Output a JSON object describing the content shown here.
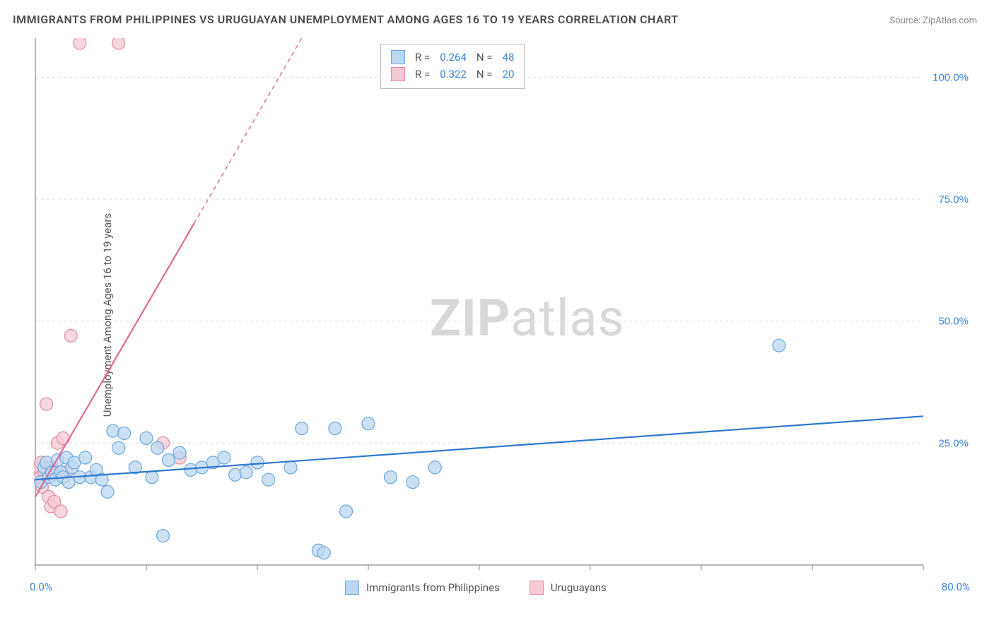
{
  "title": "IMMIGRANTS FROM PHILIPPINES VS URUGUAYAN UNEMPLOYMENT AMONG AGES 16 TO 19 YEARS CORRELATION CHART",
  "source": "Source: ZipAtlas.com",
  "ylabel": "Unemployment Among Ages 16 to 19 years",
  "watermark_bold": "ZIP",
  "watermark_light": "atlas",
  "chart": {
    "type": "scatter",
    "background": "#ffffff",
    "grid_color": "#dcdcdc",
    "grid_dash": "4,4",
    "axis_color": "#888888",
    "x_range": [
      0,
      80
    ],
    "y_range": [
      0,
      108
    ],
    "x_ticks": [
      0,
      10,
      20,
      30,
      40,
      50,
      60,
      70,
      80
    ],
    "x_label_0": "0.0%",
    "x_label_max": "80.0%",
    "y_ticks": [
      25,
      50,
      75,
      100
    ],
    "y_tick_labels": [
      "25.0%",
      "50.0%",
      "75.0%",
      "100.0%"
    ],
    "marker_radius": 9,
    "marker_stroke_width": 1.2,
    "line_width": 2.2,
    "series": [
      {
        "name": "Immigrants from Philippines",
        "fill": "#bcd7f2",
        "stroke": "#6aa7de",
        "line_color": "#2f79cf",
        "line_dash": null,
        "trend": {
          "x1": 0,
          "y1": 17.5,
          "x2": 80,
          "y2": 30.5
        },
        "R_label": "R =",
        "R": "0.264",
        "N_label": "N =",
        "N": "48",
        "points": [
          [
            0.5,
            17
          ],
          [
            0.8,
            20
          ],
          [
            1.0,
            21
          ],
          [
            1.2,
            18
          ],
          [
            1.5,
            19
          ],
          [
            1.8,
            17.5
          ],
          [
            2.0,
            21.5
          ],
          [
            2.3,
            19
          ],
          [
            2.5,
            18
          ],
          [
            2.8,
            22
          ],
          [
            3.0,
            17
          ],
          [
            3.3,
            20
          ],
          [
            3.5,
            21
          ],
          [
            4.0,
            18
          ],
          [
            4.5,
            22
          ],
          [
            5.0,
            18
          ],
          [
            5.5,
            19.5
          ],
          [
            6.0,
            17.5
          ],
          [
            6.5,
            15
          ],
          [
            7.0,
            27.5
          ],
          [
            7.5,
            24
          ],
          [
            8.0,
            27
          ],
          [
            9.0,
            20
          ],
          [
            10.0,
            26
          ],
          [
            10.5,
            18
          ],
          [
            11.0,
            24
          ],
          [
            11.5,
            6
          ],
          [
            12.0,
            21.5
          ],
          [
            13.0,
            23
          ],
          [
            14.0,
            19.5
          ],
          [
            15.0,
            20
          ],
          [
            16.0,
            21
          ],
          [
            17.0,
            22
          ],
          [
            18.0,
            18.5
          ],
          [
            19.0,
            19
          ],
          [
            20.0,
            21
          ],
          [
            21.0,
            17.5
          ],
          [
            23.0,
            20
          ],
          [
            24.0,
            28
          ],
          [
            25.5,
            3
          ],
          [
            26.0,
            2.5
          ],
          [
            27.0,
            28
          ],
          [
            28.0,
            11
          ],
          [
            30.0,
            29
          ],
          [
            32.0,
            18
          ],
          [
            34.0,
            17
          ],
          [
            36.0,
            20
          ],
          [
            67.0,
            45
          ]
        ]
      },
      {
        "name": "Uruguayans",
        "fill": "#f6c9d4",
        "stroke": "#e48aa4",
        "line_color": "#e06a8e",
        "line_dash": "6,5",
        "trend": {
          "x1": 0,
          "y1": 14,
          "x2": 24,
          "y2": 108
        },
        "R_label": "R =",
        "R": "0.322",
        "N_label": "N =",
        "N": "20",
        "points": [
          [
            0.3,
            20
          ],
          [
            0.4,
            18
          ],
          [
            0.5,
            21
          ],
          [
            0.6,
            16
          ],
          [
            0.8,
            19
          ],
          [
            1.0,
            33
          ],
          [
            1.2,
            14
          ],
          [
            1.3,
            18
          ],
          [
            1.4,
            12
          ],
          [
            1.5,
            20
          ],
          [
            1.7,
            13
          ],
          [
            2.0,
            25
          ],
          [
            2.3,
            11
          ],
          [
            2.5,
            26
          ],
          [
            2.8,
            19
          ],
          [
            3.2,
            47
          ],
          [
            4.0,
            107
          ],
          [
            7.5,
            107
          ],
          [
            11.5,
            25
          ],
          [
            13.0,
            22
          ]
        ]
      }
    ]
  },
  "legend_bottom": {
    "s1": "Immigrants from Philippines",
    "s2": "Uruguayans"
  }
}
